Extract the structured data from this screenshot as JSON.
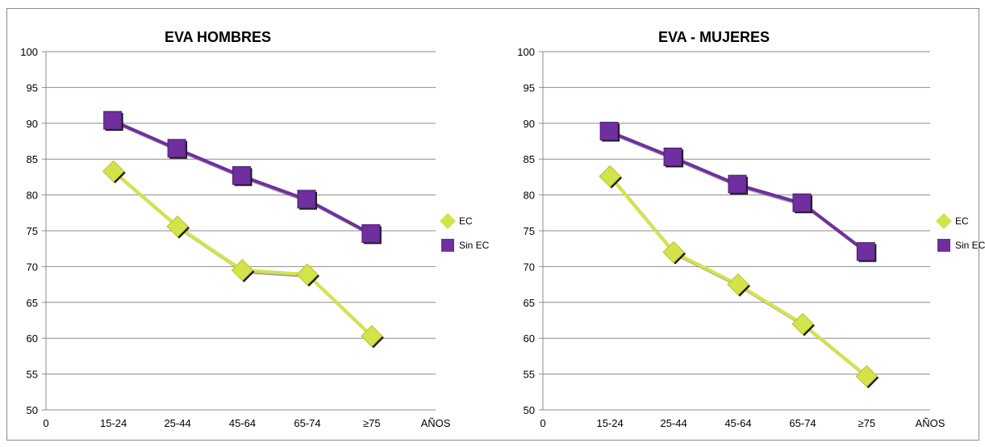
{
  "chart_data": [
    {
      "type": "line",
      "title": "EVA HOMBRES",
      "x_axis_start_label": "0",
      "categories": [
        "15-24",
        "25-44",
        "45-64",
        "65-74",
        "≥75"
      ],
      "x_axis_end_label": "AÑOS",
      "ylim": [
        50,
        100
      ],
      "yticks": [
        50,
        55,
        60,
        65,
        70,
        75,
        80,
        85,
        90,
        95,
        100
      ],
      "grid": true,
      "legend_position": "right",
      "series": [
        {
          "name": "EC",
          "values": [
            83.3,
            75.6,
            69.5,
            68.9,
            60.3
          ],
          "color": "#d4e34a",
          "marker": "diamond"
        },
        {
          "name": "Sin EC",
          "values": [
            90.3,
            86.4,
            82.6,
            79.3,
            74.5
          ],
          "color": "#6f2f9f",
          "marker": "square"
        }
      ]
    },
    {
      "type": "line",
      "title": "EVA - MUJERES",
      "x_axis_start_label": "0",
      "categories": [
        "15-24",
        "25-44",
        "45-64",
        "65-74",
        "≥75"
      ],
      "x_axis_end_label": "AÑOS",
      "ylim": [
        50,
        100
      ],
      "yticks": [
        50,
        55,
        60,
        65,
        70,
        75,
        80,
        85,
        90,
        95,
        100
      ],
      "grid": true,
      "legend_position": "right",
      "series": [
        {
          "name": "EC",
          "values": [
            82.6,
            72.0,
            67.5,
            62.0,
            54.7
          ],
          "color": "#d4e34a",
          "marker": "diamond"
        },
        {
          "name": "Sin EC",
          "values": [
            88.8,
            85.2,
            81.4,
            78.8,
            72.0
          ],
          "color": "#6f2f9f",
          "marker": "square"
        }
      ]
    }
  ]
}
